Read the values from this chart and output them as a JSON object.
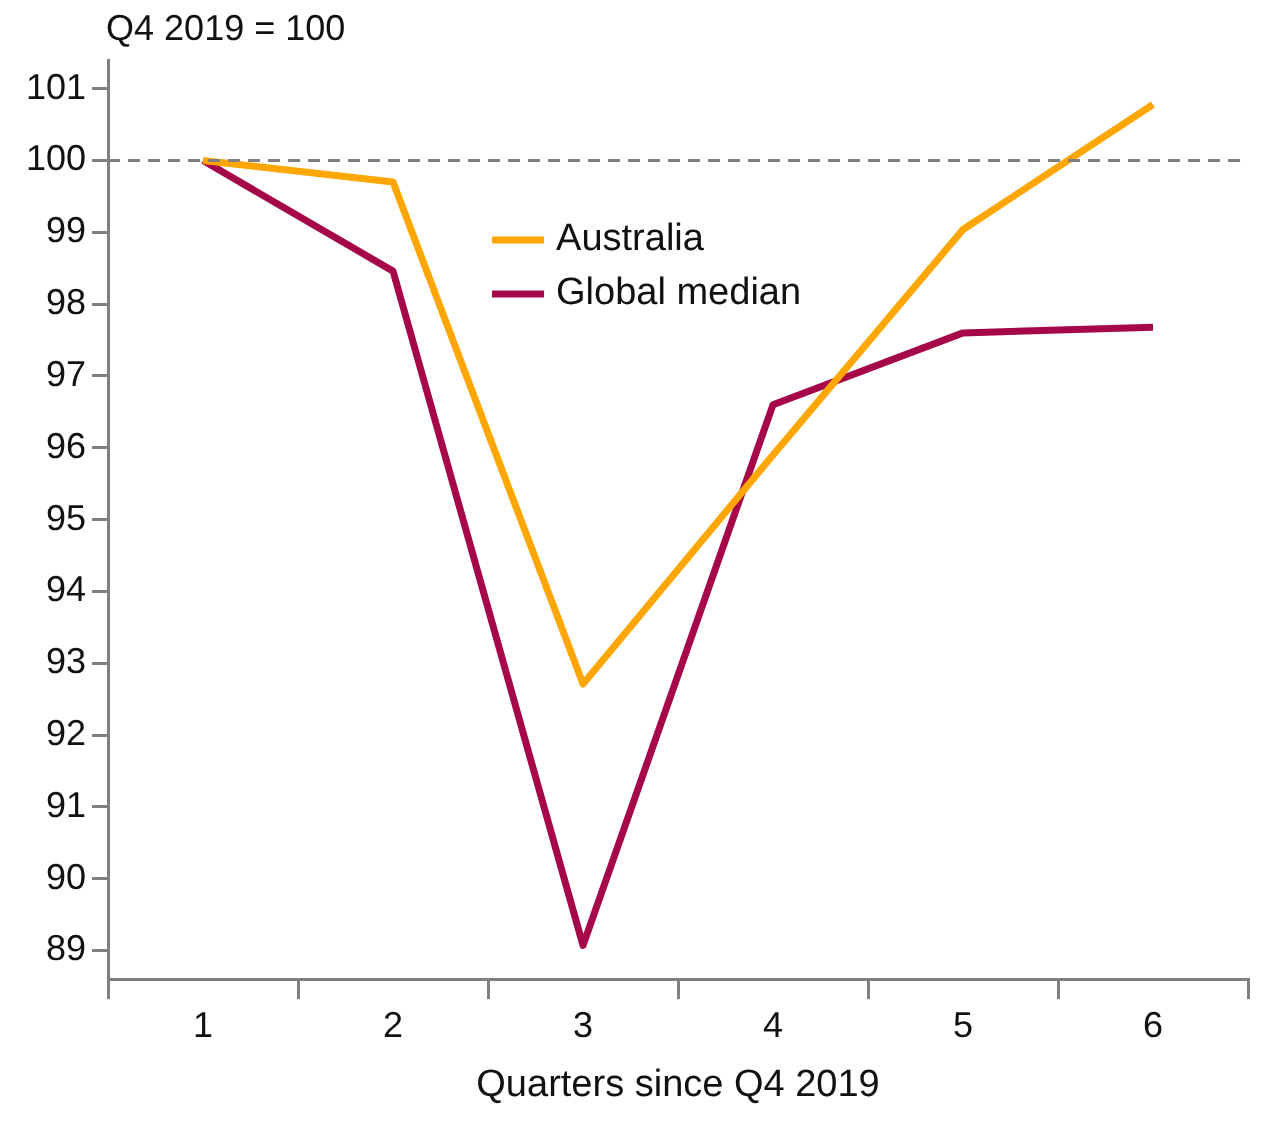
{
  "chart_data": {
    "type": "line",
    "ylabel": "Q4 2019 = 100",
    "xlabel": "Quarters since Q4 2019",
    "categories": [
      "1",
      "2",
      "3",
      "4",
      "5",
      "6"
    ],
    "series": [
      {
        "name": "Australia",
        "color": "#ffa600",
        "values": [
          100,
          99.7,
          92.71,
          95.9,
          99.04,
          100.78
        ]
      },
      {
        "name": "Global median",
        "color": "#a6064a",
        "values": [
          100,
          98.46,
          89.07,
          96.6,
          97.6,
          97.68
        ]
      }
    ],
    "ylim": [
      88.6,
      101.4
    ],
    "yticks": [
      89,
      90,
      91,
      92,
      93,
      94,
      95,
      96,
      97,
      98,
      99,
      100,
      101
    ],
    "ref_lines": [
      {
        "axis": "y",
        "value": 100,
        "color": "#808080",
        "line_style": "dashed"
      }
    ],
    "grid": false,
    "legend": "top",
    "marker": "none",
    "line_style": "solid"
  }
}
